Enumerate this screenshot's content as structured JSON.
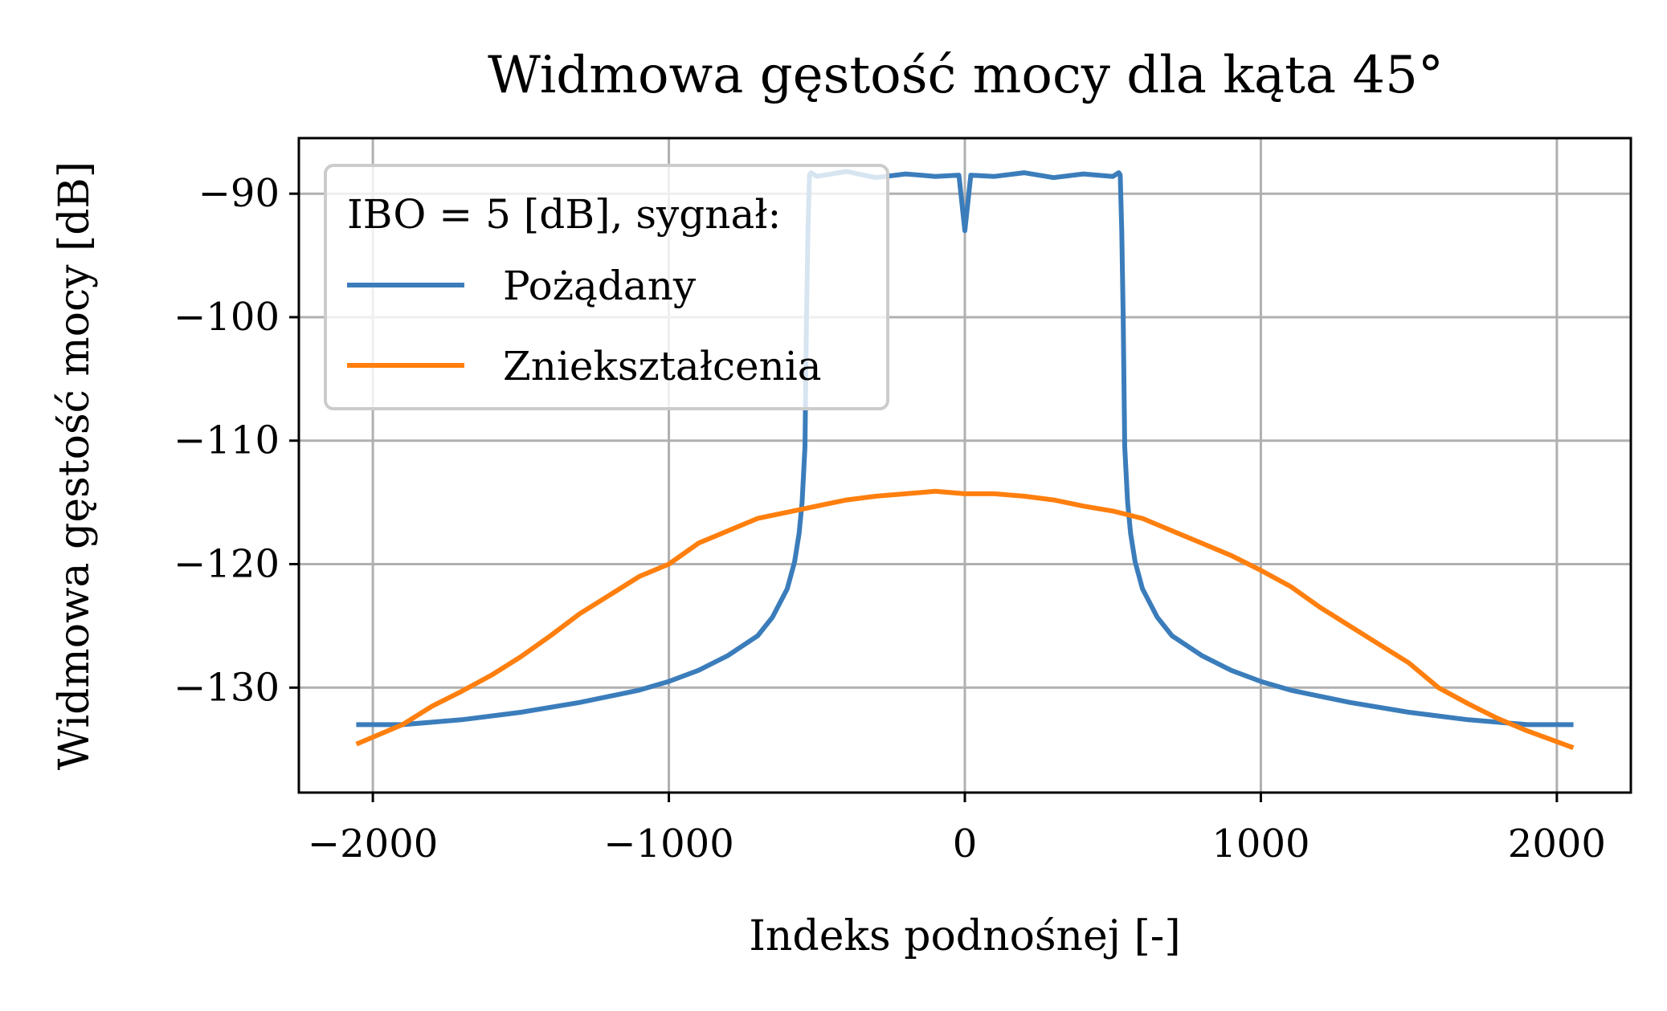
{
  "chart_data": {
    "type": "line",
    "title": "Widmowa gęstość mocy dla kąta 45°",
    "xlabel": "Indeks podnośnej [-]",
    "ylabel": "Widmowa gęstość mocy [dB]",
    "xlim": [
      -2250,
      2250
    ],
    "ylim": [
      -138.5,
      -85.5
    ],
    "xticks": [
      -2000,
      -1000,
      0,
      1000,
      2000
    ],
    "xtick_labels": [
      "−2000",
      "−1000",
      "0",
      "1000",
      "2000"
    ],
    "yticks": [
      -90,
      -100,
      -110,
      -120,
      -130
    ],
    "ytick_labels": [
      "−90",
      "−100",
      "−110",
      "−120",
      "−130"
    ],
    "grid": true,
    "legend": {
      "title": "IBO = 5 [dB], sygnał:",
      "placement": "upper-left"
    },
    "series": [
      {
        "name": "Pożądany",
        "color": "#3b7dbb",
        "x": [
          -2048,
          -1900,
          -1700,
          -1500,
          -1300,
          -1100,
          -1000,
          -900,
          -800,
          -700,
          -650,
          -600,
          -575,
          -560,
          -550,
          -540,
          -535,
          -530,
          -525,
          -520,
          -500,
          -400,
          -300,
          -200,
          -100,
          -20,
          0,
          20,
          100,
          200,
          300,
          400,
          500,
          520,
          525,
          530,
          535,
          540,
          550,
          560,
          575,
          600,
          650,
          700,
          800,
          900,
          1000,
          1100,
          1300,
          1500,
          1700,
          1900,
          2048
        ],
        "y": [
          -133,
          -133,
          -132.6,
          -132,
          -131.2,
          -130.2,
          -129.5,
          -128.6,
          -127.4,
          -125.8,
          -124.3,
          -122,
          -119.8,
          -117.5,
          -115,
          -110.5,
          -100,
          -93,
          -88.5,
          -88.3,
          -88.6,
          -88.2,
          -88.7,
          -88.4,
          -88.6,
          -88.5,
          -93,
          -88.5,
          -88.6,
          -88.3,
          -88.7,
          -88.4,
          -88.6,
          -88.3,
          -88.5,
          -93,
          -100,
          -110.5,
          -115,
          -117.5,
          -119.8,
          -122,
          -124.3,
          -125.8,
          -127.4,
          -128.6,
          -129.5,
          -130.2,
          -131.2,
          -132,
          -132.6,
          -133,
          -133
        ]
      },
      {
        "name": "Zniekształcenia",
        "color": "#ff7f0e",
        "x": [
          -2048,
          -1900,
          -1800,
          -1700,
          -1600,
          -1500,
          -1400,
          -1300,
          -1200,
          -1100,
          -1000,
          -900,
          -800,
          -700,
          -600,
          -500,
          -400,
          -300,
          -200,
          -100,
          0,
          100,
          200,
          300,
          400,
          500,
          600,
          700,
          800,
          900,
          1000,
          1100,
          1200,
          1300,
          1400,
          1500,
          1600,
          1700,
          1800,
          1900,
          2048
        ],
        "y": [
          -134.5,
          -133,
          -131.5,
          -130.3,
          -129,
          -127.5,
          -125.8,
          -124,
          -122.5,
          -121,
          -120,
          -118.3,
          -117.3,
          -116.3,
          -115.8,
          -115.3,
          -114.8,
          -114.5,
          -114.3,
          -114.1,
          -114.3,
          -114.3,
          -114.5,
          -114.8,
          -115.3,
          -115.7,
          -116.3,
          -117.3,
          -118.3,
          -119.3,
          -120.5,
          -121.8,
          -123.5,
          -125,
          -126.5,
          -128,
          -130,
          -131.3,
          -132.5,
          -133.5,
          -134.8
        ]
      }
    ]
  }
}
